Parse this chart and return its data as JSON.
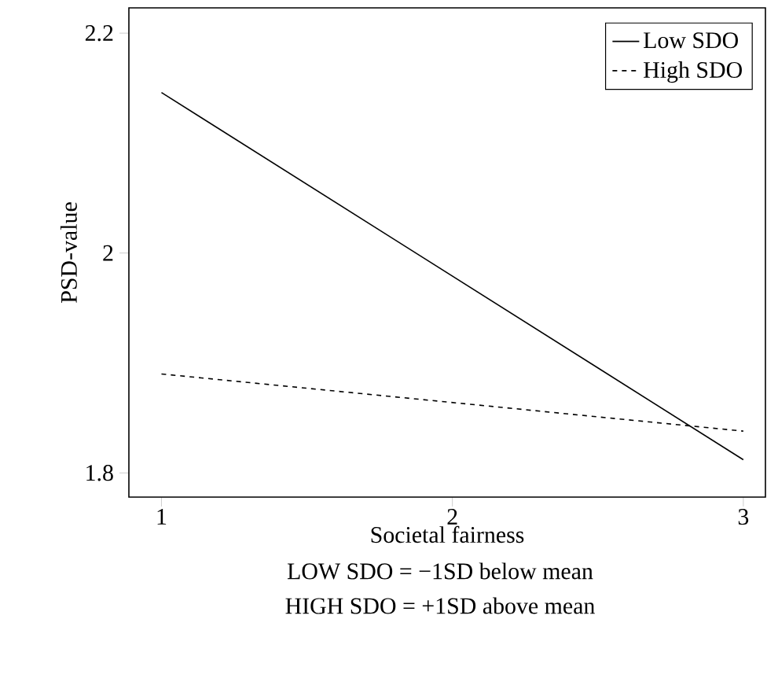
{
  "chart_data": {
    "type": "line",
    "xlabel": "Societal fairness",
    "ylabel": "PSD-value",
    "x": [
      1,
      3
    ],
    "series": [
      {
        "name": "Low SDO",
        "color": "#000000",
        "values": [
          2.146,
          1.812
        ],
        "line_style": "solid"
      },
      {
        "name": "High SDO",
        "color": "#000000",
        "values": [
          1.89,
          1.838
        ],
        "line_style": "dashed"
      }
    ],
    "xlim": [
      0.888,
      3.076
    ],
    "ylim": [
      1.778,
      2.223
    ],
    "xticks": [
      1,
      2,
      3
    ],
    "yticks": [
      1.8,
      2,
      2.2
    ],
    "grid": false,
    "legend": "top right",
    "marker": "none",
    "annotations": [
      "LOW SDO = −1SD below mean",
      "HIGH SDO = +1SD above mean"
    ]
  }
}
